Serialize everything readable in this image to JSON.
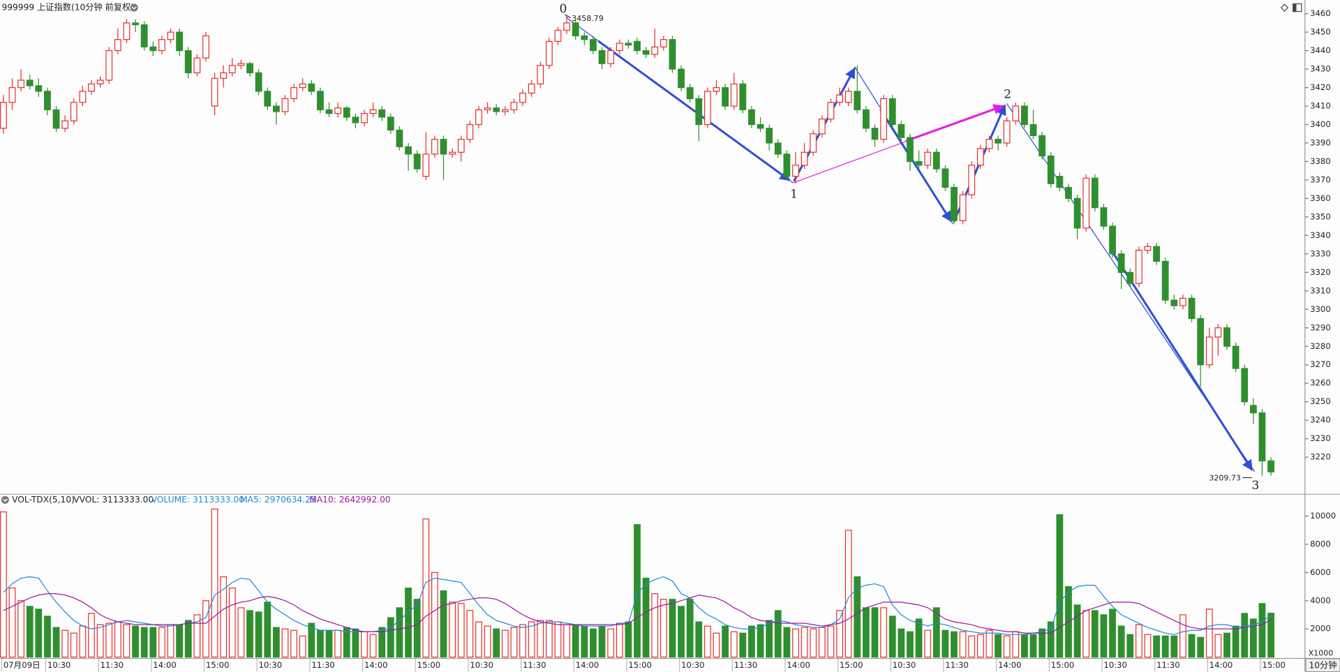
{
  "header": {
    "title": "999999 上证指数(10分钟 前复权)",
    "period": "10分钟"
  },
  "chart_data": [
    {
      "type": "candlestick",
      "up_color": "#e8302f",
      "down_color": "#2f8f2f",
      "ylim": [
        3200.6,
        3467.4
      ],
      "yticks": [
        3220,
        3230,
        3240,
        3250,
        3260,
        3270,
        3280,
        3290,
        3300,
        3310,
        3320,
        3330,
        3340,
        3350,
        3360,
        3370,
        3380,
        3390,
        3400,
        3410,
        3420,
        3430,
        3440,
        3450,
        3460
      ],
      "wave_labels": [
        "0",
        "1",
        "2",
        "3"
      ],
      "open": [
        3398,
        3412,
        3420,
        3424,
        3421,
        3418,
        3408,
        3398,
        3402,
        3412,
        3418,
        3422,
        3424,
        3440,
        3446,
        3455,
        3454,
        3442,
        3440,
        3446,
        3450,
        3440,
        3428,
        3436,
        3410,
        3425,
        3428,
        3432,
        3433,
        3428,
        3418,
        3410,
        3407,
        3414,
        3420,
        3422,
        3418,
        3408,
        3406,
        3409,
        3404,
        3401,
        3406,
        3408,
        3404,
        3397,
        3388,
        3384,
        3372,
        3384,
        3392,
        3384,
        3385,
        3392,
        3400,
        3408,
        3409,
        3407,
        3408,
        3412,
        3417,
        3422,
        3432,
        3445,
        3451,
        3455,
        3448,
        3446,
        3440,
        3433,
        3440,
        3444,
        3445,
        3440,
        3438,
        3442,
        3446,
        3430,
        3420,
        3414,
        3400,
        3418,
        3420,
        3410,
        3422,
        3408,
        3400,
        3398,
        3390,
        3384,
        3372,
        3378,
        3385,
        3395,
        3403,
        3412,
        3412,
        3418,
        3408,
        3398,
        3392,
        3414,
        3400,
        3393,
        3380,
        3378,
        3385,
        3376,
        3366,
        3348,
        3362,
        3378,
        3387,
        3392,
        3390,
        3402,
        3410,
        3400,
        3394,
        3383,
        3372,
        3366,
        3360,
        3344,
        3371,
        3355,
        3345,
        3330,
        3320,
        3314,
        3332,
        3334,
        3326,
        3305,
        3302,
        3306,
        3295,
        3270,
        3285,
        3290,
        3280,
        3268,
        3248,
        3244,
        3218
      ],
      "high": [
        3416,
        3425,
        3430,
        3427,
        3425,
        3420,
        3410,
        3405,
        3414,
        3421,
        3424,
        3426,
        3442,
        3452,
        3457,
        3457,
        3456,
        3445,
        3448,
        3452,
        3452,
        3442,
        3438,
        3450,
        3428,
        3432,
        3436,
        3435,
        3434,
        3430,
        3420,
        3412,
        3416,
        3422,
        3425,
        3424,
        3420,
        3412,
        3412,
        3410,
        3406,
        3408,
        3412,
        3410,
        3406,
        3399,
        3390,
        3386,
        3396,
        3394,
        3394,
        3387,
        3394,
        3402,
        3410,
        3412,
        3411,
        3410,
        3414,
        3419,
        3424,
        3434,
        3447,
        3453,
        3458.79,
        3457,
        3450,
        3448,
        3442,
        3442,
        3446,
        3446,
        3447,
        3442,
        3452,
        3448,
        3448,
        3432,
        3422,
        3416,
        3420,
        3424,
        3422,
        3428,
        3424,
        3410,
        3404,
        3400,
        3392,
        3386,
        3385,
        3390,
        3397,
        3405,
        3414,
        3420,
        3420,
        3432,
        3410,
        3400,
        3416,
        3416,
        3402,
        3395,
        3386,
        3387,
        3387,
        3378,
        3368,
        3364,
        3380,
        3389,
        3394,
        3394,
        3404,
        3412,
        3412,
        3408,
        3396,
        3385,
        3374,
        3368,
        3362,
        3373,
        3373,
        3357,
        3347,
        3332,
        3322,
        3334,
        3336,
        3336,
        3328,
        3308,
        3308,
        3308,
        3297,
        3290,
        3292,
        3292,
        3282,
        3270,
        3252,
        3246,
        3220
      ],
      "low": [
        3395,
        3408,
        3418,
        3419,
        3415,
        3405,
        3396,
        3396,
        3400,
        3410,
        3416,
        3420,
        3422,
        3438,
        3444,
        3450,
        3440,
        3437,
        3438,
        3444,
        3437,
        3425,
        3426,
        3434,
        3405,
        3420,
        3426,
        3430,
        3426,
        3416,
        3408,
        3400,
        3405,
        3412,
        3418,
        3416,
        3406,
        3404,
        3404,
        3402,
        3398,
        3399,
        3404,
        3402,
        3395,
        3386,
        3375,
        3374,
        3370,
        3382,
        3370,
        3382,
        3380,
        3390,
        3398,
        3406,
        3405,
        3405,
        3406,
        3410,
        3415,
        3420,
        3430,
        3443,
        3449,
        3446,
        3443,
        3438,
        3430,
        3431,
        3438,
        3441,
        3438,
        3436,
        3436,
        3440,
        3428,
        3418,
        3412,
        3391,
        3398,
        3416,
        3408,
        3408,
        3406,
        3398,
        3396,
        3386,
        3382,
        3370,
        3368,
        3376,
        3383,
        3393,
        3401,
        3410,
        3410,
        3406,
        3396,
        3388,
        3390,
        3398,
        3390,
        3375,
        3376,
        3376,
        3374,
        3364,
        3346,
        3346,
        3360,
        3376,
        3385,
        3386,
        3388,
        3400,
        3398,
        3392,
        3381,
        3366,
        3364,
        3358,
        3338,
        3342,
        3353,
        3343,
        3328,
        3311,
        3312,
        3312,
        3330,
        3324,
        3303,
        3300,
        3300,
        3293,
        3258,
        3268,
        3275,
        3278,
        3266,
        3248,
        3238,
        3209.73,
        3210
      ],
      "close": [
        3412,
        3420,
        3424,
        3421,
        3418,
        3408,
        3398,
        3402,
        3412,
        3418,
        3422,
        3424,
        3440,
        3446,
        3455,
        3454,
        3442,
        3440,
        3446,
        3450,
        3440,
        3428,
        3436,
        3448,
        3425,
        3428,
        3432,
        3433,
        3428,
        3418,
        3410,
        3407,
        3414,
        3420,
        3422,
        3418,
        3408,
        3406,
        3409,
        3404,
        3401,
        3406,
        3408,
        3404,
        3397,
        3388,
        3384,
        3376,
        3384,
        3392,
        3384,
        3385,
        3392,
        3400,
        3408,
        3409,
        3407,
        3408,
        3412,
        3417,
        3422,
        3432,
        3445,
        3451,
        3455,
        3448,
        3446,
        3440,
        3433,
        3440,
        3444,
        3443,
        3440,
        3438,
        3442,
        3446,
        3430,
        3420,
        3414,
        3400,
        3418,
        3420,
        3410,
        3422,
        3408,
        3400,
        3398,
        3390,
        3384,
        3372,
        3378,
        3385,
        3395,
        3403,
        3412,
        3416,
        3418,
        3408,
        3398,
        3392,
        3414,
        3400,
        3393,
        3380,
        3378,
        3385,
        3376,
        3366,
        3348,
        3362,
        3378,
        3387,
        3392,
        3390,
        3402,
        3410,
        3400,
        3394,
        3383,
        3368,
        3366,
        3360,
        3344,
        3371,
        3355,
        3345,
        3330,
        3320,
        3314,
        3332,
        3334,
        3326,
        3305,
        3302,
        3306,
        3295,
        3270,
        3285,
        3290,
        3280,
        3268,
        3250,
        3244,
        3218,
        3212
      ]
    },
    {
      "type": "bar",
      "title": "VOL-TDX(5,10)",
      "subtitle": "VVOL: 3113333.00",
      "y_unit_label": "X1000",
      "ylim": [
        0,
        11455
      ],
      "yticks": [
        2000,
        4000,
        6000,
        8000,
        10000
      ],
      "categories": [
        "07月09日",
        null,
        null,
        null,
        null,
        "10:30",
        null,
        null,
        null,
        null,
        null,
        "11:30",
        null,
        null,
        null,
        null,
        null,
        "14:00",
        null,
        null,
        null,
        null,
        null,
        "15:00",
        null,
        null,
        null,
        null,
        null,
        "10:30",
        null,
        null,
        null,
        null,
        null,
        "11:30",
        null,
        null,
        null,
        null,
        null,
        "14:00",
        null,
        null,
        null,
        null,
        null,
        "15:00",
        null,
        null,
        null,
        null,
        null,
        "10:30",
        null,
        null,
        null,
        null,
        null,
        "11:30",
        null,
        null,
        null,
        null,
        null,
        "14:00",
        null,
        null,
        null,
        null,
        null,
        "15:00",
        null,
        null,
        null,
        null,
        null,
        "10:30",
        null,
        null,
        null,
        null,
        null,
        "11:30",
        null,
        null,
        null,
        null,
        null,
        "14:00",
        null,
        null,
        null,
        null,
        null,
        "15:00",
        null,
        null,
        null,
        null,
        null,
        "10:30",
        null,
        null,
        null,
        null,
        null,
        "11:30",
        null,
        null,
        null,
        null,
        null,
        "14:00",
        null,
        null,
        null,
        null,
        null,
        "15:00",
        null,
        null,
        null,
        null,
        null,
        "10:30",
        null,
        null,
        null,
        null,
        null,
        "11:30",
        null,
        null,
        null,
        null,
        null,
        "14:00",
        null,
        null,
        null,
        null,
        null,
        "15:00",
        null
      ],
      "series": [
        {
          "name": "VOLUME: 3113333.00",
          "color": "#1e8ad6",
          "values": [
            10300,
            4900,
            4000,
            3600,
            3400,
            2900,
            2100,
            1900,
            1700,
            2200,
            3100,
            2300,
            2400,
            2500,
            2300,
            2200,
            2100,
            2100,
            2100,
            2300,
            2300,
            2600,
            3000,
            4000,
            10500,
            5700,
            4900,
            3500,
            3300,
            3200,
            3900,
            2100,
            2000,
            1900,
            1500,
            2400,
            1900,
            1900,
            1900,
            2100,
            2000,
            1800,
            1600,
            2100,
            2800,
            3500,
            4900,
            4100,
            9800,
            6000,
            4700,
            3900,
            3800,
            3300,
            2500,
            2200,
            2000,
            1900,
            2100,
            2300,
            2500,
            2600,
            2600,
            2500,
            2300,
            2300,
            2200,
            2000,
            2200,
            2000,
            2400,
            2500,
            9400,
            5600,
            4500,
            4100,
            4100,
            3600,
            4100,
            2500,
            2200,
            1700,
            2200,
            1800,
            1700,
            2200,
            2300,
            2600,
            3300,
            2100,
            2000,
            2100,
            2000,
            2100,
            2200,
            3300,
            9000,
            5700,
            3500,
            3500,
            3500,
            2900,
            2000,
            1800,
            2700,
            1900,
            3500,
            1900,
            1800,
            1800,
            1500,
            1600,
            1900,
            1600,
            1500,
            1800,
            1600,
            1600,
            2000,
            2500,
            10100,
            5000,
            3700,
            3300,
            3300,
            3000,
            3400,
            2200,
            1600,
            2300,
            1600,
            1500,
            1500,
            1500,
            3000,
            1600,
            1400,
            3400,
            1600,
            1700,
            2200,
            3100,
            2700,
            3800,
            3113.333
          ]
        },
        {
          "name": "MA5: 2970634.25",
          "color": "#1e8ad6",
          "values": [
            4600,
            5200,
            5600,
            5700,
            5600,
            4700,
            3900,
            3200,
            2600,
            2200,
            2000,
            2100,
            2300,
            2500,
            2600,
            2500,
            2400,
            2300,
            2200,
            2200,
            2300,
            2400,
            2500,
            2800,
            4400,
            4800,
            5300,
            5600,
            5500,
            4700,
            3900,
            3400,
            3000,
            2600,
            2300,
            2100,
            1900,
            1900,
            1900,
            1800,
            1800,
            1800,
            1800,
            1900,
            2100,
            2600,
            3200,
            3700,
            5300,
            5600,
            5500,
            5400,
            5300,
            4500,
            3700,
            3000,
            2600,
            2400,
            2200,
            2100,
            2200,
            2400,
            2500,
            2500,
            2400,
            2300,
            2200,
            2200,
            2200,
            2200,
            2400,
            2400,
            4500,
            5200,
            5500,
            5700,
            5400,
            4500,
            4200,
            3500,
            3000,
            2700,
            2300,
            2100,
            2000,
            2000,
            2100,
            2400,
            2600,
            2500,
            2300,
            2200,
            2100,
            2100,
            2300,
            2700,
            4200,
            4900,
            5100,
            5200,
            5000,
            3700,
            3000,
            2600,
            2400,
            2200,
            2400,
            2300,
            2100,
            1900,
            1800,
            1700,
            1700,
            1700,
            1600,
            1600,
            1600,
            1700,
            1800,
            2000,
            3900,
            4600,
            5000,
            5100,
            5100,
            4300,
            3600,
            3000,
            2700,
            2400,
            2100,
            1900,
            1700,
            1600,
            1800,
            1900,
            1900,
            2200,
            2300,
            2300,
            2100,
            2200,
            2300,
            2500,
            2970.63425
          ]
        },
        {
          "name": "MA10: 2642992.00",
          "color": "#a0189c",
          "values": [
            3300,
            3600,
            3900,
            4200,
            4400,
            4500,
            4500,
            4400,
            4200,
            3900,
            3500,
            3000,
            2700,
            2500,
            2400,
            2300,
            2300,
            2300,
            2300,
            2300,
            2300,
            2400,
            2400,
            2400,
            2900,
            3400,
            3700,
            3900,
            4000,
            4200,
            4300,
            4200,
            4000,
            3700,
            3300,
            3000,
            2700,
            2500,
            2300,
            2100,
            1900,
            1800,
            1800,
            1800,
            1900,
            2000,
            2100,
            2300,
            2900,
            3300,
            3700,
            3800,
            4000,
            4100,
            4200,
            4200,
            4100,
            3800,
            3400,
            3000,
            2700,
            2500,
            2400,
            2300,
            2300,
            2300,
            2300,
            2300,
            2300,
            2300,
            2300,
            2400,
            2800,
            3200,
            3500,
            3700,
            3800,
            4000,
            4200,
            4400,
            4300,
            4200,
            3900,
            3500,
            3200,
            2800,
            2600,
            2500,
            2400,
            2400,
            2400,
            2400,
            2300,
            2200,
            2300,
            2400,
            2700,
            3100,
            3500,
            3700,
            3900,
            3900,
            3900,
            3800,
            3700,
            3500,
            3100,
            2700,
            2500,
            2400,
            2300,
            2100,
            2000,
            1900,
            1800,
            1800,
            1700,
            1700,
            1700,
            1700,
            2100,
            2500,
            2900,
            3300,
            3500,
            3700,
            3900,
            3900,
            3900,
            3800,
            3500,
            3200,
            2900,
            2600,
            2300,
            2100,
            2000,
            2000,
            2000,
            2000,
            2000,
            2100,
            2200,
            2300,
            2642.992
          ]
        }
      ]
    }
  ]
}
